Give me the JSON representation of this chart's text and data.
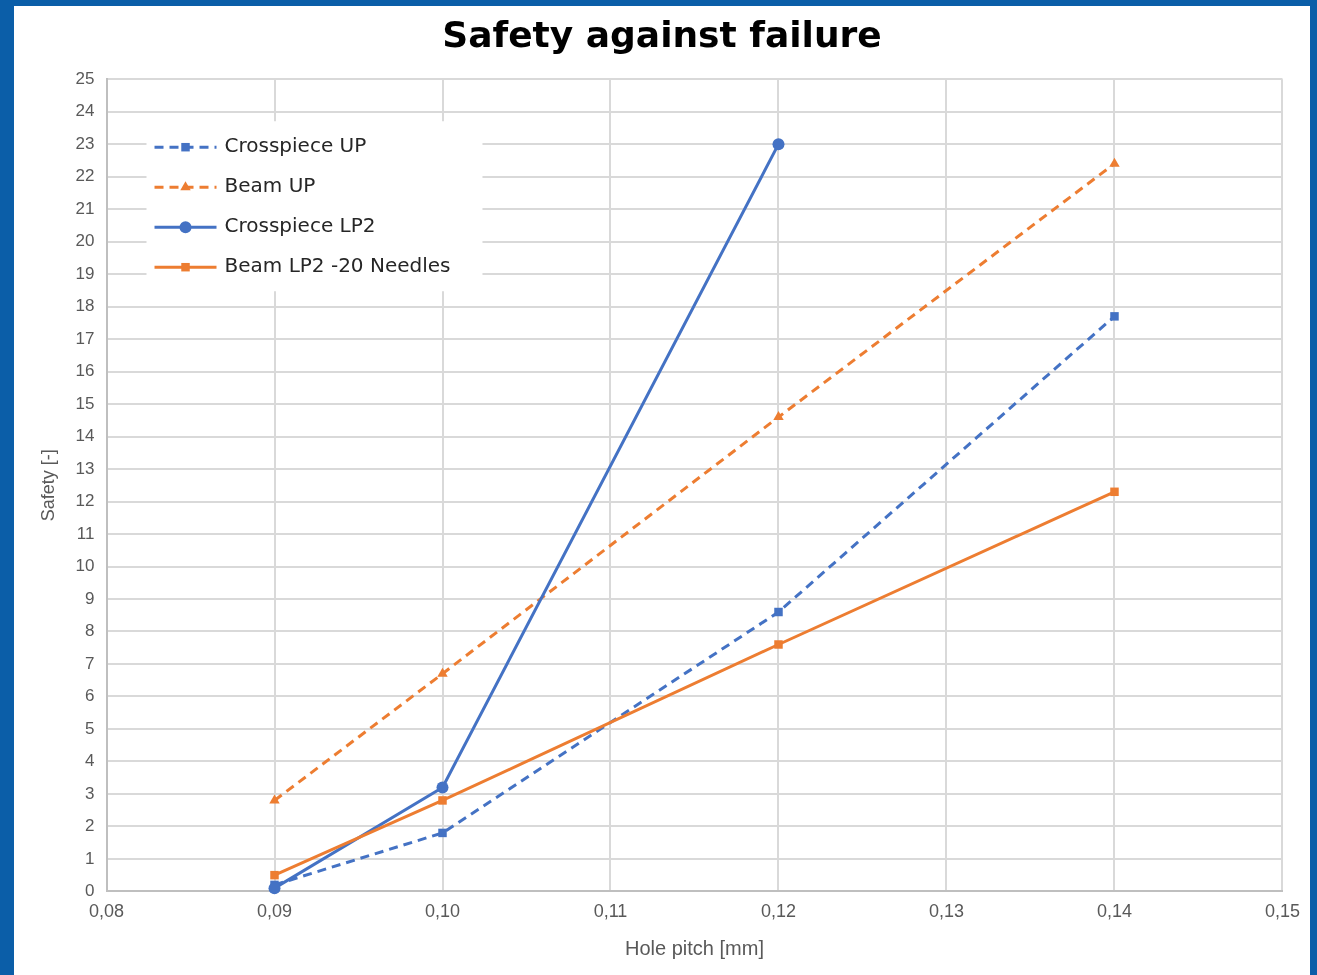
{
  "chart_data": {
    "type": "line",
    "title": "Safety against failure",
    "xlabel": "Hole pitch [mm]",
    "ylabel": "Safety [-]",
    "x": [
      0.09,
      0.1,
      0.12,
      0.14
    ],
    "series": [
      {
        "name": "Crosspiece UP",
        "color": "#4472c4",
        "values": [
          0.2,
          1.8,
          8.6,
          17.7
        ],
        "marker": "square",
        "line_style": "dashed"
      },
      {
        "name": "Beam UP",
        "color": "#ed7d31",
        "values": [
          2.8,
          6.7,
          14.6,
          22.4
        ],
        "marker": "triangle",
        "line_style": "dashed"
      },
      {
        "name": "Crosspiece LP2",
        "color": "#4472c4",
        "values": [
          0.1,
          3.2,
          23.0,
          null
        ],
        "marker": "circle",
        "line_style": "solid"
      },
      {
        "name": "Beam LP2 -20 Needles",
        "color": "#ed7d31",
        "values": [
          0.5,
          2.8,
          7.6,
          12.3
        ],
        "marker": "square",
        "line_style": "solid"
      }
    ],
    "xlim": [
      0.08,
      0.15
    ],
    "xticks": [
      {
        "value": 0.08,
        "label": "0,08"
      },
      {
        "value": 0.09,
        "label": "0,09"
      },
      {
        "value": 0.1,
        "label": "0,10"
      },
      {
        "value": 0.11,
        "label": "0,11"
      },
      {
        "value": 0.12,
        "label": "0,12"
      },
      {
        "value": 0.13,
        "label": "0,13"
      },
      {
        "value": 0.14,
        "label": "0,14"
      },
      {
        "value": 0.15,
        "label": "0,15"
      }
    ],
    "ylim": [
      0,
      25
    ],
    "yticks": [
      0,
      1,
      2,
      3,
      4,
      5,
      6,
      7,
      8,
      9,
      10,
      11,
      12,
      13,
      14,
      15,
      16,
      17,
      18,
      19,
      20,
      21,
      22,
      23,
      24,
      25
    ],
    "grid": true,
    "legend": "top left"
  }
}
